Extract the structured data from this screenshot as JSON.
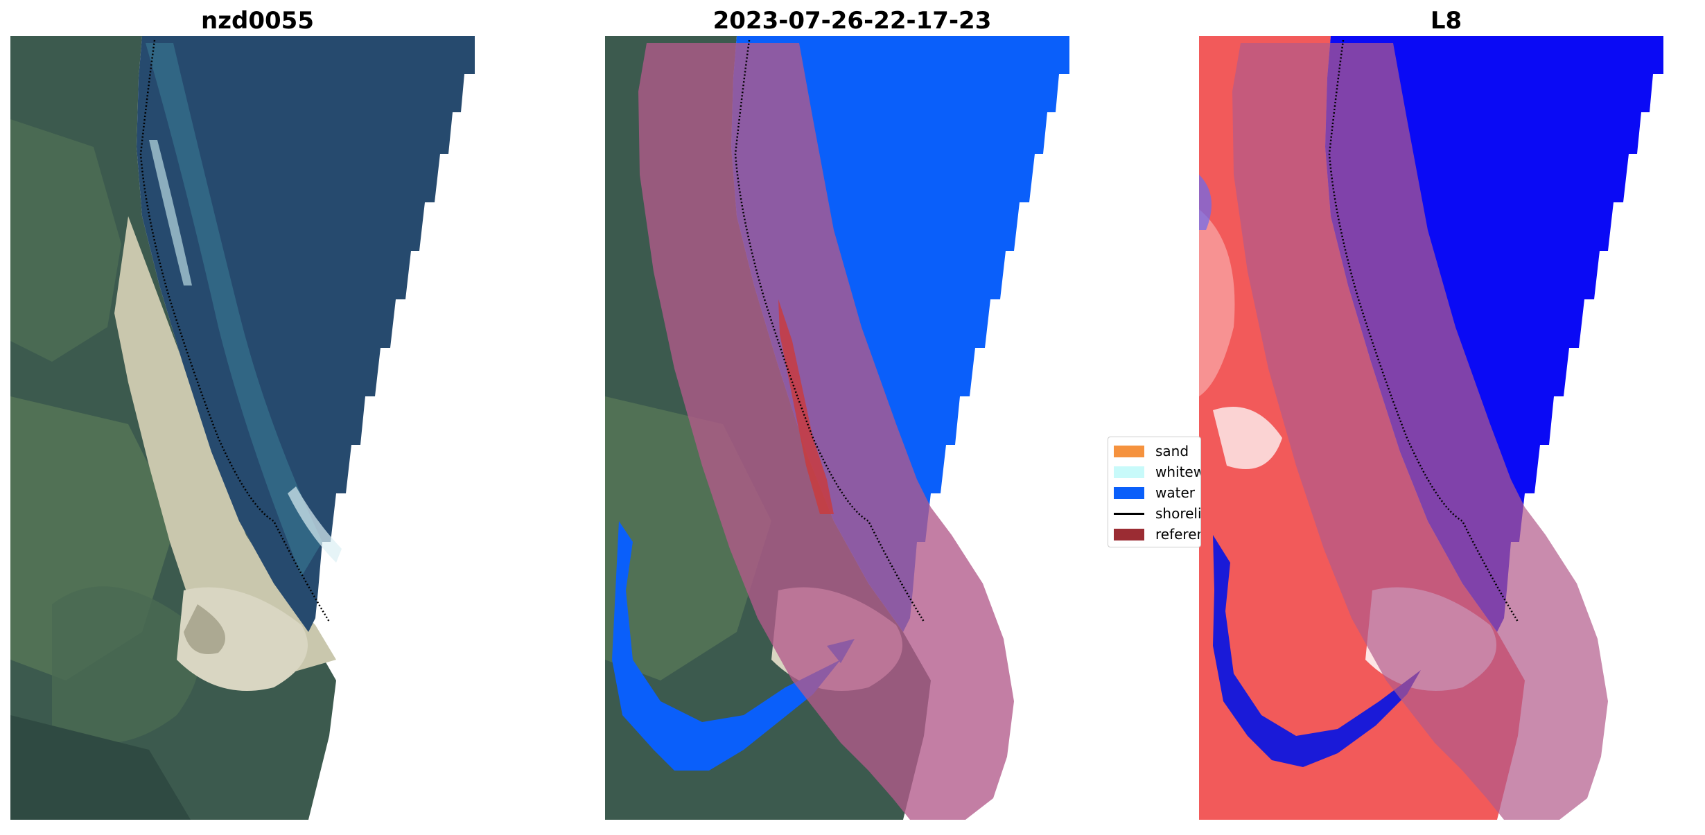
{
  "figure": {
    "panels": [
      {
        "title": "nzd0055",
        "content": "satellite-rgb-image"
      },
      {
        "title": "2023-07-26-22-17-23",
        "content": "classified-image-overlay"
      },
      {
        "title": "L8",
        "content": "water-index-image"
      }
    ]
  },
  "legend": {
    "items": [
      {
        "label": "sand",
        "color": "#f5923e",
        "kind": "patch"
      },
      {
        "label": "whitewater",
        "color": "#c8fafa",
        "kind": "patch"
      },
      {
        "label": "water",
        "color": "#0a5ffa",
        "kind": "patch"
      },
      {
        "label": "shoreline",
        "color": "#000000",
        "kind": "line"
      },
      {
        "label": "reference shoreline buffer",
        "color": "#9b2c33",
        "kind": "patch"
      }
    ]
  },
  "colors": {
    "ocean": "#264a6e",
    "water_class": "#0a5ffa",
    "buffer": "#b25a8a",
    "index_land": "#f25a5a",
    "index_water": "#0a0af5"
  }
}
